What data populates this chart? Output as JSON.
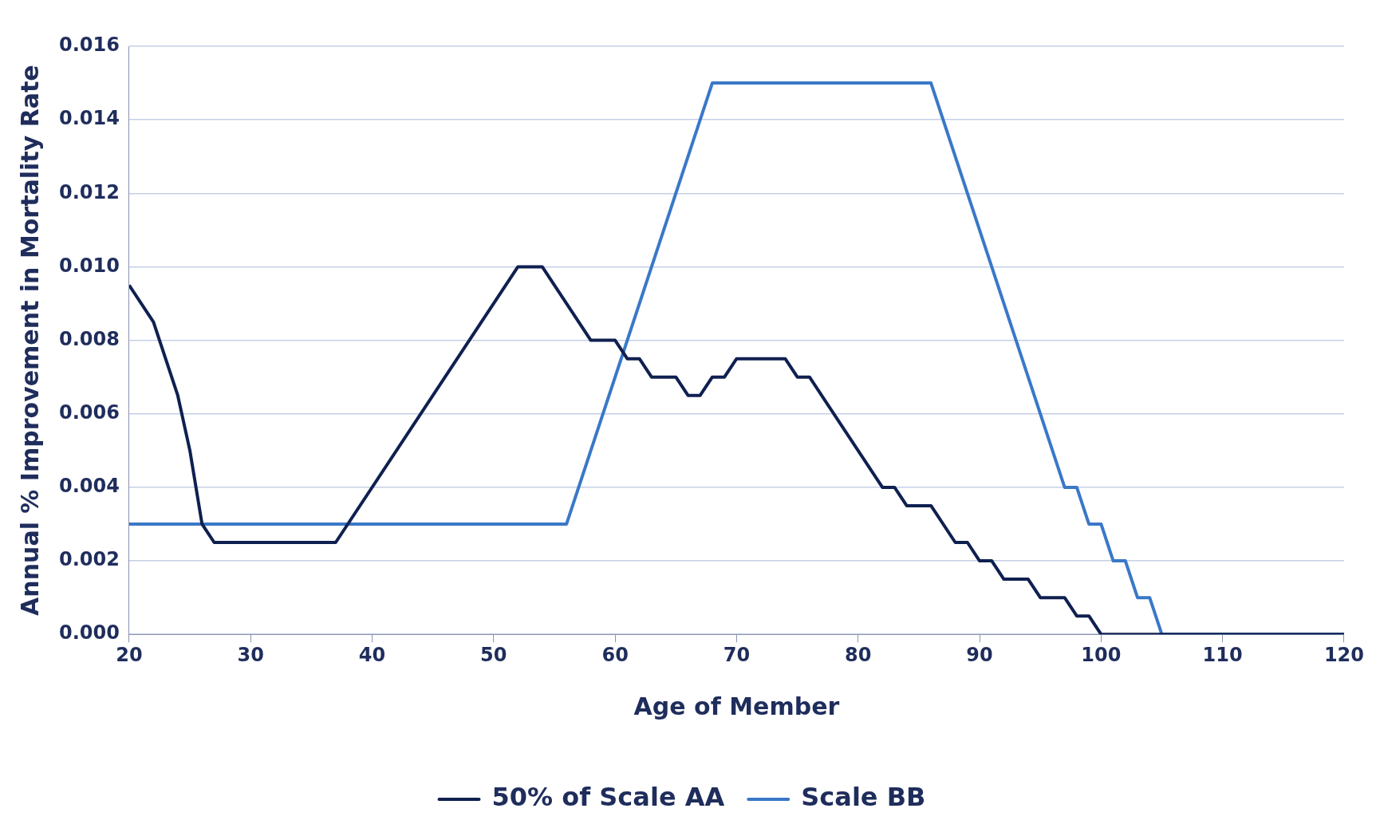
{
  "chart_data": {
    "type": "line",
    "xlabel": "Age of Member",
    "ylabel": "Annual % Improvement in Mortality Rate",
    "xlim": [
      20,
      120
    ],
    "xticks": [
      20,
      30,
      40,
      50,
      60,
      70,
      80,
      90,
      100,
      110,
      120
    ],
    "ylim": [
      0,
      0.016
    ],
    "yticks": [
      {
        "value": 0,
        "label": "0.000"
      },
      {
        "value": 0.002,
        "label": "0.002"
      },
      {
        "value": 0.004,
        "label": "0.004"
      },
      {
        "value": 0.006,
        "label": "0.006"
      },
      {
        "value": 0.008,
        "label": "0.008"
      },
      {
        "value": 0.01,
        "label": "0.010"
      },
      {
        "value": 0.012,
        "label": "0.012"
      },
      {
        "value": 0.014,
        "label": "0.014"
      },
      {
        "value": 0.016,
        "label": "0.016"
      }
    ],
    "grid": "y",
    "legend": "bottom",
    "marker": "none",
    "line_style": "solid",
    "series": [
      {
        "name": "50% of Scale AA",
        "color": "#0f2050",
        "x": [
          20,
          22,
          24,
          25,
          26,
          27,
          37,
          52,
          54,
          58,
          60,
          61,
          62,
          63,
          65,
          66,
          67,
          68,
          69,
          70,
          74,
          75,
          76,
          82,
          83,
          84,
          86,
          88,
          89,
          90,
          91,
          92,
          94,
          95,
          97,
          98,
          99,
          100,
          120
        ],
        "values": [
          0.0095,
          0.0085,
          0.0065,
          0.005,
          0.003,
          0.0025,
          0.0025,
          0.01,
          0.01,
          0.008,
          0.008,
          0.0075,
          0.0075,
          0.007,
          0.007,
          0.0065,
          0.0065,
          0.007,
          0.007,
          0.0075,
          0.0075,
          0.007,
          0.007,
          0.004,
          0.004,
          0.0035,
          0.0035,
          0.0025,
          0.0025,
          0.002,
          0.002,
          0.0015,
          0.0015,
          0.001,
          0.001,
          0.0005,
          0.0005,
          0,
          0
        ]
      },
      {
        "name": "Scale BB",
        "color": "#3a78c8",
        "x": [
          20,
          56,
          68,
          86,
          97,
          98,
          99,
          100,
          101,
          102,
          103,
          104,
          105,
          120
        ],
        "values": [
          0.003,
          0.003,
          0.015,
          0.015,
          0.004,
          0.004,
          0.003,
          0.003,
          0.002,
          0.002,
          0.001,
          0.001,
          0,
          0
        ]
      }
    ]
  }
}
